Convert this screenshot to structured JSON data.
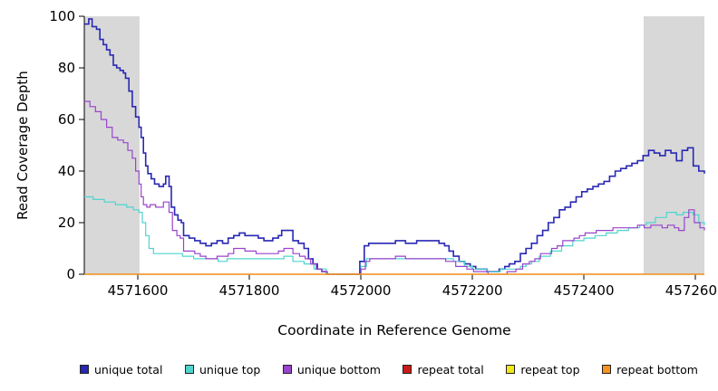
{
  "chart_data": {
    "type": "line",
    "step": true,
    "title": "",
    "xlabel": "Coordinate in Reference Genome",
    "ylabel": "Read Coverage Depth",
    "xlim": [
      4571504,
      4572616
    ],
    "ylim": [
      0,
      100
    ],
    "x_ticks": [
      4571600,
      4571800,
      4572000,
      4572200,
      4572400,
      4572600
    ],
    "y_ticks": [
      0,
      20,
      40,
      60,
      80,
      100
    ],
    "grid": false,
    "legend_position": "bottom",
    "shaded_regions": [
      {
        "x0": 4571504,
        "x1": 4571603,
        "color": "#d8d8d8"
      },
      {
        "x0": 4572507,
        "x1": 4572616,
        "color": "#d8d8d8"
      }
    ],
    "series": [
      {
        "name": "unique total",
        "color": "#2828b4",
        "width": 1.6,
        "points": [
          [
            4571504,
            97
          ],
          [
            4571512,
            99
          ],
          [
            4571518,
            96
          ],
          [
            4571526,
            95
          ],
          [
            4571532,
            91
          ],
          [
            4571538,
            89
          ],
          [
            4571544,
            87
          ],
          [
            4571550,
            85
          ],
          [
            4571556,
            81
          ],
          [
            4571562,
            80
          ],
          [
            4571568,
            79
          ],
          [
            4571574,
            78
          ],
          [
            4571578,
            76
          ],
          [
            4571584,
            71
          ],
          [
            4571590,
            65
          ],
          [
            4571596,
            61
          ],
          [
            4571602,
            57
          ],
          [
            4571606,
            53
          ],
          [
            4571610,
            47
          ],
          [
            4571614,
            42
          ],
          [
            4571618,
            39
          ],
          [
            4571624,
            37
          ],
          [
            4571630,
            35
          ],
          [
            4571638,
            34
          ],
          [
            4571646,
            35
          ],
          [
            4571650,
            38
          ],
          [
            4571656,
            34
          ],
          [
            4571660,
            26
          ],
          [
            4571666,
            23
          ],
          [
            4571672,
            21
          ],
          [
            4571678,
            20
          ],
          [
            4571682,
            15
          ],
          [
            4571692,
            14
          ],
          [
            4571702,
            13
          ],
          [
            4571712,
            12
          ],
          [
            4571722,
            11
          ],
          [
            4571732,
            12
          ],
          [
            4571742,
            13
          ],
          [
            4571752,
            12
          ],
          [
            4571762,
            14
          ],
          [
            4571772,
            15
          ],
          [
            4571782,
            16
          ],
          [
            4571792,
            15
          ],
          [
            4571806,
            15
          ],
          [
            4571816,
            14
          ],
          [
            4571826,
            13
          ],
          [
            4571842,
            14
          ],
          [
            4571852,
            15
          ],
          [
            4571858,
            17
          ],
          [
            4571872,
            17
          ],
          [
            4571878,
            13
          ],
          [
            4571888,
            12
          ],
          [
            4571898,
            10
          ],
          [
            4571906,
            6
          ],
          [
            4571914,
            4
          ],
          [
            4571922,
            2
          ],
          [
            4571930,
            1
          ],
          [
            4571938,
            0
          ],
          [
            4571992,
            0
          ],
          [
            4571998,
            5
          ],
          [
            4572006,
            11
          ],
          [
            4572014,
            12
          ],
          [
            4572040,
            12
          ],
          [
            4572062,
            13
          ],
          [
            4572080,
            12
          ],
          [
            4572100,
            13
          ],
          [
            4572120,
            13
          ],
          [
            4572140,
            12
          ],
          [
            4572150,
            11
          ],
          [
            4572158,
            9
          ],
          [
            4572166,
            7
          ],
          [
            4572176,
            5
          ],
          [
            4572186,
            4
          ],
          [
            4572196,
            3
          ],
          [
            4572206,
            2
          ],
          [
            4572226,
            1
          ],
          [
            4572248,
            2
          ],
          [
            4572258,
            3
          ],
          [
            4572266,
            4
          ],
          [
            4572276,
            5
          ],
          [
            4572286,
            8
          ],
          [
            4572296,
            10
          ],
          [
            4572306,
            12
          ],
          [
            4572316,
            15
          ],
          [
            4572326,
            17
          ],
          [
            4572336,
            20
          ],
          [
            4572346,
            22
          ],
          [
            4572356,
            25
          ],
          [
            4572366,
            26
          ],
          [
            4572376,
            28
          ],
          [
            4572386,
            30
          ],
          [
            4572396,
            32
          ],
          [
            4572406,
            33
          ],
          [
            4572416,
            34
          ],
          [
            4572426,
            35
          ],
          [
            4572436,
            36
          ],
          [
            4572446,
            38
          ],
          [
            4572456,
            40
          ],
          [
            4572466,
            41
          ],
          [
            4572476,
            42
          ],
          [
            4572486,
            43
          ],
          [
            4572496,
            44
          ],
          [
            4572506,
            46
          ],
          [
            4572516,
            48
          ],
          [
            4572526,
            47
          ],
          [
            4572536,
            46
          ],
          [
            4572546,
            48
          ],
          [
            4572556,
            47
          ],
          [
            4572566,
            44
          ],
          [
            4572576,
            48
          ],
          [
            4572586,
            49
          ],
          [
            4572596,
            42
          ],
          [
            4572606,
            40
          ],
          [
            4572616,
            39
          ]
        ]
      },
      {
        "name": "unique top",
        "color": "#4fd5ce",
        "width": 1.2,
        "points": [
          [
            4571504,
            30
          ],
          [
            4571520,
            29
          ],
          [
            4571540,
            28
          ],
          [
            4571560,
            27
          ],
          [
            4571580,
            26
          ],
          [
            4571592,
            25
          ],
          [
            4571602,
            24
          ],
          [
            4571608,
            20
          ],
          [
            4571614,
            15
          ],
          [
            4571620,
            10
          ],
          [
            4571628,
            8
          ],
          [
            4571660,
            8
          ],
          [
            4571680,
            7
          ],
          [
            4571700,
            6
          ],
          [
            4571730,
            6
          ],
          [
            4571744,
            5
          ],
          [
            4571760,
            6
          ],
          [
            4571850,
            6
          ],
          [
            4571862,
            7
          ],
          [
            4571878,
            5
          ],
          [
            4571898,
            4
          ],
          [
            4571916,
            2
          ],
          [
            4571938,
            0
          ],
          [
            4571992,
            0
          ],
          [
            4572000,
            3
          ],
          [
            4572010,
            6
          ],
          [
            4572150,
            6
          ],
          [
            4572166,
            5
          ],
          [
            4572186,
            3
          ],
          [
            4572200,
            2
          ],
          [
            4572226,
            1
          ],
          [
            4572250,
            2
          ],
          [
            4572286,
            3
          ],
          [
            4572296,
            4
          ],
          [
            4572306,
            5
          ],
          [
            4572320,
            7
          ],
          [
            4572340,
            9
          ],
          [
            4572360,
            11
          ],
          [
            4572380,
            13
          ],
          [
            4572400,
            14
          ],
          [
            4572420,
            15
          ],
          [
            4572440,
            16
          ],
          [
            4572460,
            17
          ],
          [
            4572480,
            18
          ],
          [
            4572500,
            19
          ],
          [
            4572512,
            20
          ],
          [
            4572528,
            22
          ],
          [
            4572548,
            24
          ],
          [
            4572566,
            23
          ],
          [
            4572578,
            24
          ],
          [
            4572596,
            23
          ],
          [
            4572606,
            20
          ],
          [
            4572616,
            19
          ]
        ]
      },
      {
        "name": "unique bottom",
        "color": "#9944cc",
        "width": 1.2,
        "points": [
          [
            4571504,
            67
          ],
          [
            4571514,
            65
          ],
          [
            4571524,
            63
          ],
          [
            4571534,
            60
          ],
          [
            4571544,
            57
          ],
          [
            4571554,
            53
          ],
          [
            4571564,
            52
          ],
          [
            4571574,
            51
          ],
          [
            4571582,
            48
          ],
          [
            4571590,
            45
          ],
          [
            4571596,
            40
          ],
          [
            4571602,
            35
          ],
          [
            4571606,
            30
          ],
          [
            4571610,
            27
          ],
          [
            4571616,
            26
          ],
          [
            4571622,
            27
          ],
          [
            4571632,
            26
          ],
          [
            4571646,
            28
          ],
          [
            4571656,
            24
          ],
          [
            4571662,
            17
          ],
          [
            4571670,
            15
          ],
          [
            4571676,
            14
          ],
          [
            4571682,
            9
          ],
          [
            4571702,
            8
          ],
          [
            4571712,
            7
          ],
          [
            4571722,
            6
          ],
          [
            4571742,
            7
          ],
          [
            4571762,
            8
          ],
          [
            4571772,
            10
          ],
          [
            4571792,
            9
          ],
          [
            4571812,
            8
          ],
          [
            4571842,
            8
          ],
          [
            4571852,
            9
          ],
          [
            4571862,
            10
          ],
          [
            4571878,
            8
          ],
          [
            4571890,
            7
          ],
          [
            4571900,
            6
          ],
          [
            4571910,
            4
          ],
          [
            4571920,
            2
          ],
          [
            4571930,
            1
          ],
          [
            4571940,
            0
          ],
          [
            4571992,
            0
          ],
          [
            4572000,
            2
          ],
          [
            4572008,
            5
          ],
          [
            4572016,
            6
          ],
          [
            4572062,
            7
          ],
          [
            4572080,
            6
          ],
          [
            4572110,
            6
          ],
          [
            4572140,
            6
          ],
          [
            4572152,
            5
          ],
          [
            4572170,
            3
          ],
          [
            4572190,
            2
          ],
          [
            4572202,
            1
          ],
          [
            4572228,
            0
          ],
          [
            4572262,
            1
          ],
          [
            4572278,
            2
          ],
          [
            4572290,
            4
          ],
          [
            4572302,
            5
          ],
          [
            4572312,
            6
          ],
          [
            4572322,
            8
          ],
          [
            4572342,
            10
          ],
          [
            4572352,
            11
          ],
          [
            4572362,
            13
          ],
          [
            4572382,
            14
          ],
          [
            4572392,
            15
          ],
          [
            4572402,
            16
          ],
          [
            4572422,
            17
          ],
          [
            4572452,
            18
          ],
          [
            4572496,
            19
          ],
          [
            4572508,
            18
          ],
          [
            4572520,
            19
          ],
          [
            4572540,
            18
          ],
          [
            4572550,
            19
          ],
          [
            4572562,
            18
          ],
          [
            4572570,
            17
          ],
          [
            4572580,
            22
          ],
          [
            4572588,
            25
          ],
          [
            4572598,
            20
          ],
          [
            4572608,
            18
          ],
          [
            4572616,
            17
          ]
        ]
      },
      {
        "name": "repeat total",
        "color": "#cc1a1a",
        "width": 1.2,
        "points": [
          [
            4571504,
            0
          ],
          [
            4572616,
            0
          ]
        ]
      },
      {
        "name": "repeat top",
        "color": "#f2e718",
        "width": 1.2,
        "points": [
          [
            4571504,
            0
          ],
          [
            4572616,
            0
          ]
        ]
      },
      {
        "name": "repeat bottom",
        "color": "#f79420",
        "width": 1.2,
        "points": [
          [
            4571504,
            0
          ],
          [
            4572616,
            0
          ]
        ]
      }
    ]
  }
}
